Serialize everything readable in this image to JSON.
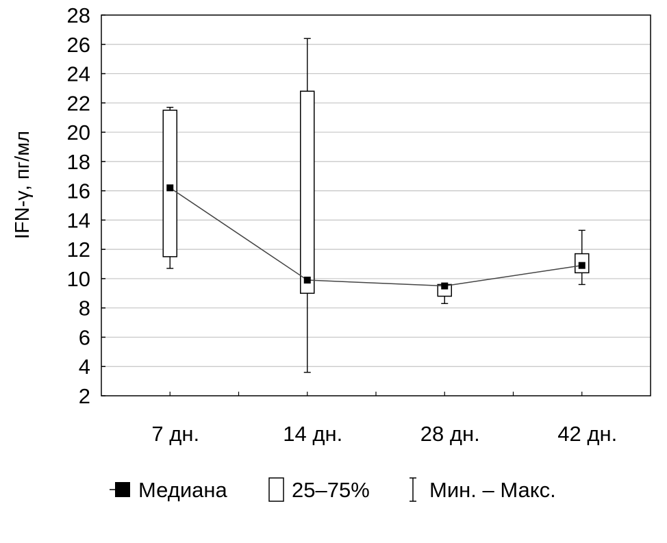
{
  "chart_data": {
    "type": "box",
    "ylabel": "IFN-γ, пг/мл",
    "xlabel": "",
    "ylim": [
      2,
      28
    ],
    "yticks": [
      2,
      4,
      6,
      8,
      10,
      12,
      14,
      16,
      18,
      20,
      22,
      24,
      26,
      28
    ],
    "grid": "horizontal",
    "categories": [
      "7 дн.",
      "14 дн.",
      "28 дн.",
      "42 дн."
    ],
    "median": [
      16.2,
      9.9,
      9.5,
      10.9
    ],
    "q1": [
      11.5,
      9.0,
      8.8,
      10.4
    ],
    "q3": [
      21.5,
      22.8,
      9.6,
      11.7
    ],
    "min": [
      10.7,
      3.6,
      8.3,
      9.6
    ],
    "max": [
      21.7,
      26.4,
      9.6,
      13.3
    ],
    "legend": {
      "placement": "bottom",
      "median": "Медиана",
      "iqr": "25–75%",
      "range": "Мин. – Макс."
    }
  }
}
